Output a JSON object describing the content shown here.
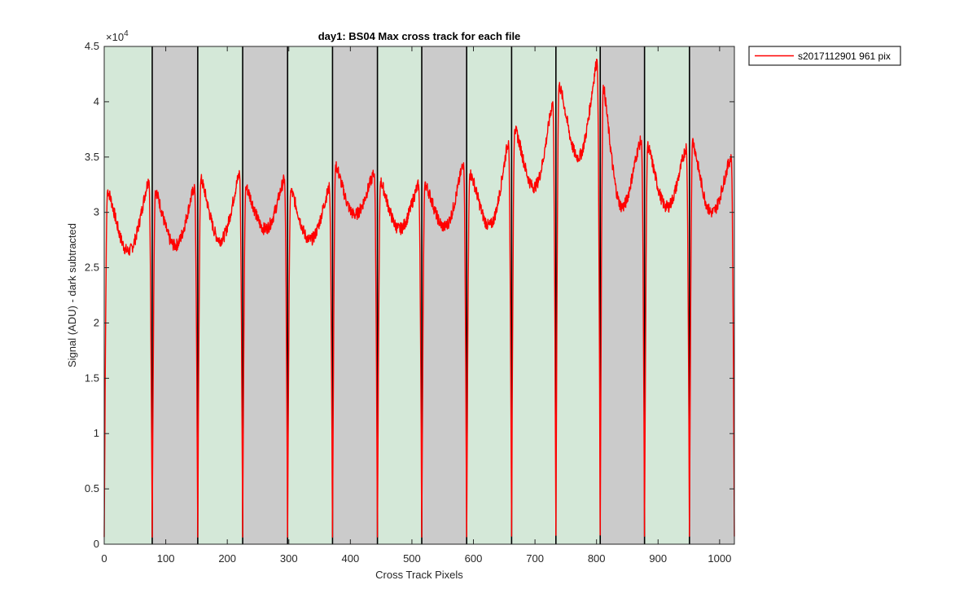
{
  "chart_data": {
    "type": "line",
    "title": "day1: BS04  Max cross track for each file",
    "xlabel": "Cross Track Pixels",
    "ylabel": "Signal (ADU) - dark subtracted",
    "xlim": [
      0,
      1024
    ],
    "ylim": [
      0,
      45000
    ],
    "y_exponent_label": "×10",
    "y_exponent": "4",
    "x_ticks": [
      0,
      100,
      200,
      300,
      400,
      500,
      600,
      700,
      800,
      900,
      1000
    ],
    "y_ticks": [
      0,
      5000,
      10000,
      15000,
      20000,
      25000,
      30000,
      35000,
      40000,
      45000
    ],
    "y_tick_labels": [
      "0",
      "0.5",
      "1",
      "1.5",
      "2",
      "2.5",
      "3",
      "3.5",
      "4",
      "4.5"
    ],
    "x_tick_labels": [
      "0",
      "100",
      "200",
      "300",
      "400",
      "500",
      "600",
      "700",
      "800",
      "900",
      "1000"
    ],
    "band_boundaries": [
      0,
      78,
      152,
      225,
      298,
      371,
      444,
      516,
      589,
      662,
      734,
      806,
      878,
      951,
      1024
    ],
    "band_colors": [
      "#d4e8d8",
      "#cbcbcb",
      "#d4e8d8",
      "#cbcbcb",
      "#d4e8d8",
      "#cbcbcb",
      "#d4e8d8",
      "#cbcbcb",
      "#d4e8d8",
      "#d4e8d8",
      "#d4e8d8",
      "#cbcbcb",
      "#d4e8d8",
      "#cbcbcb"
    ],
    "separator_lines": [
      78,
      152,
      225,
      298,
      371,
      444,
      516,
      589,
      662,
      734,
      806,
      878,
      951
    ],
    "series": [
      {
        "name": "s2017112901 961 pix",
        "color": "#ff0000",
        "segments": [
          {
            "start": 0,
            "end": 78,
            "peak_left": 32000,
            "dip": 26500,
            "peak_right": 33000
          },
          {
            "start": 78,
            "end": 152,
            "peak_left": 32000,
            "dip": 27000,
            "peak_right": 32300
          },
          {
            "start": 152,
            "end": 225,
            "peak_left": 33000,
            "dip": 27500,
            "peak_right": 33500
          },
          {
            "start": 225,
            "end": 298,
            "peak_left": 32300,
            "dip": 28500,
            "peak_right": 33000
          },
          {
            "start": 298,
            "end": 371,
            "peak_left": 32000,
            "dip": 27500,
            "peak_right": 32200
          },
          {
            "start": 371,
            "end": 444,
            "peak_left": 34300,
            "dip": 29800,
            "peak_right": 33500
          },
          {
            "start": 444,
            "end": 516,
            "peak_left": 32800,
            "dip": 28500,
            "peak_right": 32500
          },
          {
            "start": 516,
            "end": 589,
            "peak_left": 32500,
            "dip": 28700,
            "peak_right": 34500
          },
          {
            "start": 589,
            "end": 662,
            "peak_left": 33500,
            "dip": 28800,
            "peak_right": 36500
          },
          {
            "start": 662,
            "end": 734,
            "peak_left": 37500,
            "dip": 32300,
            "peak_right": 40000
          },
          {
            "start": 734,
            "end": 806,
            "peak_left": 41500,
            "dip": 35000,
            "peak_right": 43800
          },
          {
            "start": 806,
            "end": 878,
            "peak_left": 41500,
            "dip": 30500,
            "peak_right": 36500
          },
          {
            "start": 878,
            "end": 951,
            "peak_left": 36000,
            "dip": 30500,
            "peak_right": 35900
          },
          {
            "start": 951,
            "end": 1024,
            "peak_left": 36500,
            "dip": 30000,
            "peak_right": 35000
          }
        ]
      }
    ],
    "legend": {
      "position": "top-right-outside",
      "entries": [
        "s2017112901 961 pix"
      ]
    }
  }
}
